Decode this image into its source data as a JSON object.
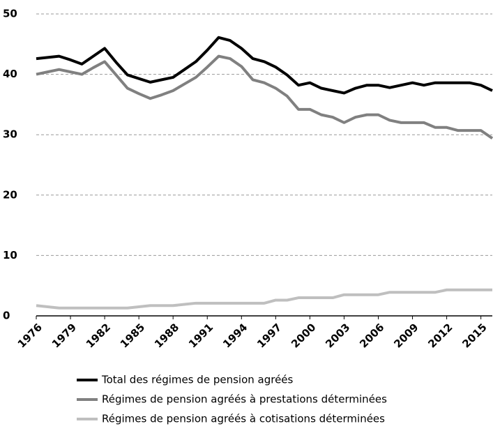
{
  "chart_data": {
    "type": "line",
    "x": [
      1976,
      1977,
      1978,
      1979,
      1980,
      1981,
      1982,
      1983,
      1984,
      1985,
      1986,
      1987,
      1988,
      1989,
      1990,
      1991,
      1992,
      1993,
      1994,
      1995,
      1996,
      1997,
      1998,
      1999,
      2000,
      2001,
      2002,
      2003,
      2004,
      2005,
      2006,
      2007,
      2008,
      2009,
      2010,
      2011,
      2012,
      2013,
      2014,
      2015,
      2016
    ],
    "series": [
      {
        "name": "Total des régimes de pension agréés",
        "color": "#000000",
        "values": [
          42.6,
          42.8,
          43.0,
          42.4,
          41.7,
          43.0,
          44.3,
          42.0,
          39.9,
          39.3,
          38.7,
          39.1,
          39.5,
          40.8,
          42.1,
          44.0,
          46.1,
          45.6,
          44.3,
          42.6,
          42.1,
          41.2,
          39.9,
          38.2,
          38.6,
          37.7,
          37.3,
          36.9,
          37.7,
          38.2,
          38.2,
          37.8,
          38.2,
          38.6,
          38.2,
          38.6,
          38.6,
          38.6,
          38.6,
          38.2,
          37.3
        ]
      },
      {
        "name": "Régimes de pension agréés à prestations déterminées",
        "color": "#808080",
        "values": [
          40.0,
          40.4,
          40.8,
          40.4,
          40.0,
          41.1,
          42.1,
          39.9,
          37.7,
          36.8,
          36.0,
          36.6,
          37.3,
          38.4,
          39.5,
          41.2,
          43.0,
          42.6,
          41.3,
          39.1,
          38.6,
          37.7,
          36.4,
          34.2,
          34.2,
          33.3,
          32.9,
          32.0,
          32.9,
          33.3,
          33.3,
          32.4,
          32.0,
          32.0,
          32.0,
          31.2,
          31.2,
          30.7,
          30.7,
          30.7,
          29.4
        ]
      },
      {
        "name": "Régimes de pension agréés à cotisations déterminées",
        "color": "#bfbfbf",
        "values": [
          1.7,
          1.5,
          1.3,
          1.3,
          1.3,
          1.3,
          1.3,
          1.3,
          1.3,
          1.5,
          1.7,
          1.7,
          1.7,
          1.9,
          2.1,
          2.1,
          2.1,
          2.1,
          2.1,
          2.1,
          2.1,
          2.6,
          2.6,
          3.0,
          3.0,
          3.0,
          3.0,
          3.5,
          3.5,
          3.5,
          3.5,
          3.9,
          3.9,
          3.9,
          3.9,
          3.9,
          4.3,
          4.3,
          4.3,
          4.3,
          4.3
        ]
      }
    ],
    "xlim": [
      1976,
      2016
    ],
    "xticks": [
      1976,
      1979,
      1982,
      1985,
      1988,
      1991,
      1994,
      1997,
      2000,
      2003,
      2006,
      2009,
      2012,
      2015
    ],
    "ylim": [
      0,
      50
    ],
    "yticks": [
      0,
      10,
      20,
      30,
      40,
      50
    ],
    "grid": true,
    "legend": "bottom"
  }
}
